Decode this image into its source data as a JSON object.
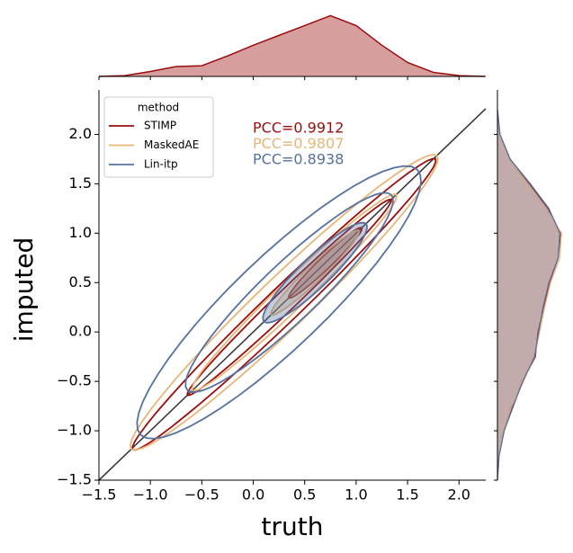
{
  "chart_data": {
    "type": "kde_joint",
    "xlabel": "truth",
    "ylabel": "imputed",
    "legend_title": "method",
    "legend": "upper left",
    "identity_line": true,
    "xlim": [
      -1.5,
      2.26
    ],
    "ylim": [
      -1.5,
      2.45
    ],
    "xticks": [
      {
        "value": -1.5,
        "label": "−1.5"
      },
      {
        "value": -1.0,
        "label": "−1.0"
      },
      {
        "value": -0.5,
        "label": "−0.5"
      },
      {
        "value": 0,
        "label": "0.0"
      },
      {
        "value": 0.5,
        "label": "0.5"
      },
      {
        "value": 1.0,
        "label": "1.0"
      },
      {
        "value": 1.5,
        "label": "1.5"
      },
      {
        "value": 2.0,
        "label": "2.0"
      }
    ],
    "yticks": [
      {
        "value": -1.5,
        "label": "−1.5"
      },
      {
        "value": -1.0,
        "label": "−1.0"
      },
      {
        "value": -0.5,
        "label": "−0.5"
      },
      {
        "value": 0,
        "label": "0.0"
      },
      {
        "value": 0.5,
        "label": "0.5"
      },
      {
        "value": 1.0,
        "label": "1.0"
      },
      {
        "value": 1.5,
        "label": "1.5"
      },
      {
        "value": 2.0,
        "label": "2.0"
      }
    ],
    "density_lim": [
      0,
      0.8
    ],
    "grid_points": [
      -1.5,
      -1.25,
      -1.0,
      -0.75,
      -0.5,
      -0.25,
      0,
      0.25,
      0.5,
      0.75,
      1.0,
      1.25,
      1.5,
      1.75,
      2.0,
      2.25
    ],
    "marginal_x": [
      0,
      0.01,
      0.06,
      0.12,
      0.13,
      0.25,
      0.38,
      0.5,
      0.62,
      0.74,
      0.62,
      0.38,
      0.17,
      0.05,
      0.01,
      0
    ],
    "series": [
      {
        "name": "STIMP",
        "color": "#9b0d0d",
        "annotation": "PCC=0.9912",
        "contours": [
          {
            "cx": 0.3,
            "cy": 0.28,
            "a": 2.08,
            "b": 0.17
          },
          {
            "cx": 0.35,
            "cy": 0.35,
            "a": 1.4,
            "b": 0.1
          },
          {
            "cx": 0.7,
            "cy": 0.7,
            "a": 0.5,
            "b": 0.06
          }
        ],
        "marginal_y": [
          0,
          0.02,
          0.08,
          0.18,
          0.3,
          0.45,
          0.48,
          0.55,
          0.62,
          0.72,
          0.75,
          0.6,
          0.38,
          0.15,
          0.03,
          0
        ]
      },
      {
        "name": "MaskedAE",
        "color": "#e8b677",
        "annotation": "PCC=0.9807",
        "contours": [
          {
            "cx": 0.3,
            "cy": 0.3,
            "a": 2.1,
            "b": 0.25
          },
          {
            "cx": 0.4,
            "cy": 0.4,
            "a": 1.4,
            "b": 0.14
          },
          {
            "cx": 0.6,
            "cy": 0.6,
            "a": 0.6,
            "b": 0.08
          }
        ],
        "marginal_y": [
          0,
          0.02,
          0.07,
          0.17,
          0.31,
          0.44,
          0.5,
          0.56,
          0.63,
          0.74,
          0.76,
          0.58,
          0.36,
          0.14,
          0.03,
          0
        ]
      },
      {
        "name": "Lin-itp",
        "color": "#5571a1",
        "annotation": "PCC=0.8938",
        "contours": [
          {
            "cx": 0.25,
            "cy": 0.3,
            "a": 1.9,
            "b": 0.45
          },
          {
            "cx": 0.35,
            "cy": 0.4,
            "a": 1.4,
            "b": 0.28
          },
          {
            "cx": 0.6,
            "cy": 0.6,
            "a": 0.7,
            "b": 0.15
          }
        ],
        "marginal_y": [
          0,
          0.02,
          0.08,
          0.19,
          0.3,
          0.44,
          0.49,
          0.54,
          0.61,
          0.72,
          0.74,
          0.61,
          0.39,
          0.15,
          0.03,
          0
        ]
      }
    ]
  }
}
